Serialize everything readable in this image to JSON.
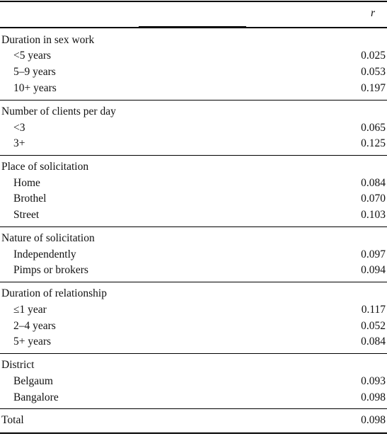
{
  "header": {
    "r_label": "r"
  },
  "sections": [
    {
      "title": "Duration in sex work",
      "items": [
        {
          "label": "<5 years",
          "r": "0.025"
        },
        {
          "label": "5–9 years",
          "r": "0.053"
        },
        {
          "label": "10+ years",
          "r": "0.197"
        }
      ]
    },
    {
      "title": "Number of clients per day",
      "items": [
        {
          "label": "<3",
          "r": "0.065"
        },
        {
          "label": "3+",
          "r": "0.125"
        }
      ]
    },
    {
      "title": "Place of solicitation",
      "items": [
        {
          "label": "Home",
          "r": "0.084"
        },
        {
          "label": "Brothel",
          "r": "0.070"
        },
        {
          "label": "Street",
          "r": "0.103"
        }
      ]
    },
    {
      "title": "Nature of solicitation",
      "items": [
        {
          "label": "Independently",
          "r": "0.097"
        },
        {
          "label": "Pimps or brokers",
          "r": "0.094"
        }
      ]
    },
    {
      "title": "Duration of relationship",
      "items": [
        {
          "label": "≤1 year",
          "r": "0.117"
        },
        {
          "label": "2–4 years",
          "r": "0.052"
        },
        {
          "label": "5+ years",
          "r": "0.084"
        }
      ]
    },
    {
      "title": "District",
      "items": [
        {
          "label": "Belgaum",
          "r": "0.093"
        },
        {
          "label": "Bangalore",
          "r": "0.098"
        }
      ]
    }
  ],
  "total": {
    "label": "Total",
    "r": "0.098"
  }
}
